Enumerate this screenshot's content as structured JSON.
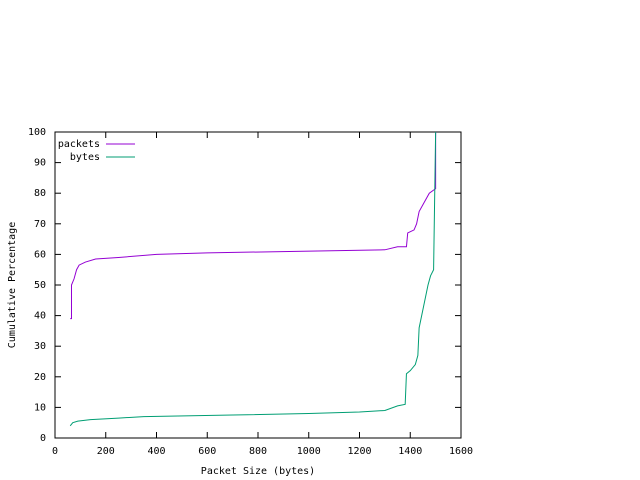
{
  "chart_data": {
    "type": "line",
    "xlabel": "Packet Size (bytes)",
    "ylabel": "Cumulative Percentage",
    "xlim": [
      0,
      1600
    ],
    "ylim": [
      0,
      100
    ],
    "xticks": [
      0,
      200,
      400,
      600,
      800,
      1000,
      1200,
      1400,
      1600
    ],
    "yticks": [
      0,
      10,
      20,
      30,
      40,
      50,
      60,
      70,
      80,
      90,
      100
    ],
    "legend": "top-left",
    "series": [
      {
        "name": "packets",
        "color": "#9400d3",
        "x": [
          60,
          65,
          65,
          75,
          85,
          95,
          120,
          160,
          250,
          400,
          600,
          950,
          1300,
          1350,
          1385,
          1390,
          1415,
          1425,
          1435,
          1455,
          1475,
          1500,
          1500
        ],
        "values": [
          39,
          39,
          50,
          52,
          55,
          56.5,
          57.5,
          58.5,
          59,
          60,
          60.5,
          61,
          61.5,
          62.5,
          62.5,
          67,
          68,
          70,
          74,
          77,
          80,
          81.5,
          100
        ]
      },
      {
        "name": "bytes",
        "color": "#009e73",
        "x": [
          60,
          70,
          90,
          140,
          250,
          350,
          700,
          1000,
          1200,
          1300,
          1350,
          1380,
          1385,
          1400,
          1420,
          1430,
          1435,
          1450,
          1470,
          1480,
          1492,
          1500
        ],
        "values": [
          4,
          5,
          5.5,
          6,
          6.5,
          7,
          7.5,
          8,
          8.5,
          9,
          10.5,
          11,
          21,
          22,
          24,
          27,
          36,
          42,
          50,
          53,
          55,
          100
        ]
      }
    ]
  }
}
